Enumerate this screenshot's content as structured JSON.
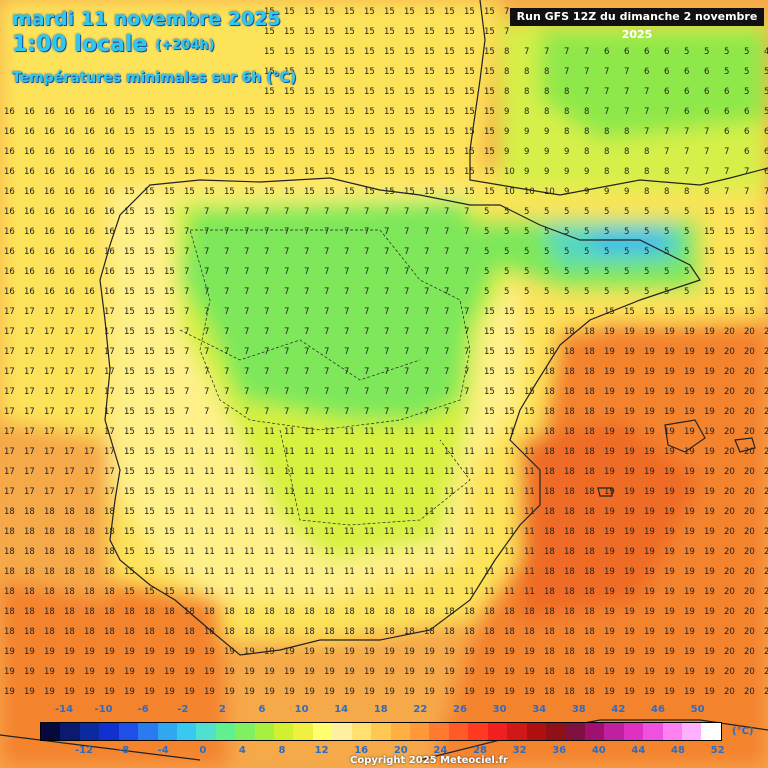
{
  "header": {
    "date": "mardi 11 novembre 2025",
    "local_time": "1:00 locale",
    "lead_time": "(+204h)",
    "field": "Températures minimales sur 6h (°C)",
    "run": "Run GFS 12Z du dimanche 2 novembre 2025"
  },
  "legend": {
    "top_labels": [
      "-14",
      "-10",
      "-6",
      "-2",
      "2",
      "6",
      "10",
      "14",
      "18",
      "22",
      "26",
      "30",
      "34",
      "38",
      "42",
      "46",
      "50"
    ],
    "bottom_labels": [
      "-12",
      "-8",
      "-4",
      "0",
      "4",
      "8",
      "12",
      "16",
      "20",
      "24",
      "28",
      "32",
      "36",
      "40",
      "44",
      "48",
      "52"
    ],
    "unit": "(°C)",
    "colors": [
      "#050a3a",
      "#0a1a6e",
      "#0a2a9e",
      "#1030d0",
      "#1e50e8",
      "#2a7af0",
      "#30a8f0",
      "#38c8f0",
      "#50e0d0",
      "#60f090",
      "#80f060",
      "#a8f040",
      "#d0f030",
      "#f0f040",
      "#ffff70",
      "#fff0a0",
      "#ffe070",
      "#ffc850",
      "#ffb040",
      "#ff9838",
      "#ff7a30",
      "#ff5a28",
      "#ff3a20",
      "#f02020",
      "#d01818",
      "#b01010",
      "#901018",
      "#801040",
      "#a01070",
      "#c020a0",
      "#e030c0",
      "#f050e0",
      "#ff80f0",
      "#ffb0ff",
      "#ffffff"
    ]
  },
  "copyright": "Copyright 2025 Meteociel.fr"
}
